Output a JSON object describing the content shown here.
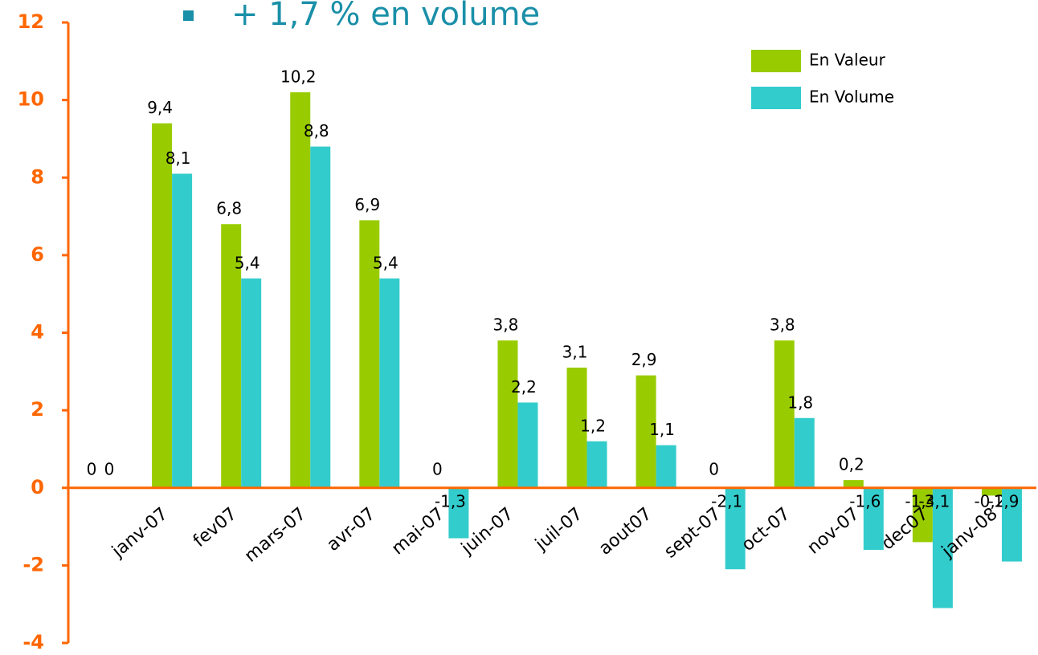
{
  "chart_data": {
    "type": "bar",
    "title": "+ 1,7 % en volume",
    "categories": [
      null,
      "janv-07",
      "fev07",
      "mars-07",
      "avr-07",
      "mai-07",
      "juin-07",
      "juil-07",
      "aout07",
      "sept-07",
      "oct-07",
      "nov-07",
      "dec07",
      "janv-08"
    ],
    "series": [
      {
        "name": "En Valeur",
        "color": "#99cc00",
        "values": [
          0,
          9.4,
          6.8,
          10.2,
          6.9,
          0,
          3.8,
          3.1,
          2.9,
          0,
          3.8,
          0.2,
          -1.4,
          -0.2
        ],
        "value_labels": [
          "0",
          "9,4",
          "6,8",
          "10,2",
          "6,9",
          "0",
          "3,8",
          "3,1",
          "2,9",
          "0",
          "3,8",
          "0,2",
          "-1,4",
          "-0,2"
        ]
      },
      {
        "name": "En Volume",
        "color": "#33cccc",
        "values": [
          0,
          8.1,
          5.4,
          8.8,
          5.4,
          -1.3,
          2.2,
          1.2,
          1.1,
          -2.1,
          1.8,
          -1.6,
          -3.1,
          -1.9
        ],
        "value_labels": [
          "0",
          "8,1",
          "5,4",
          "8,8",
          "5,4",
          "-1,3",
          "2,2",
          "1,2",
          "1,1",
          "-2,1",
          "1,8",
          "-1,6",
          "-3,1",
          "-1,9"
        ]
      }
    ],
    "ylim": [
      -4,
      12
    ],
    "yticks": [
      -4,
      -2,
      0,
      2,
      4,
      6,
      8,
      10,
      12
    ],
    "axis_color": "#ff6600",
    "legend": "upper right"
  }
}
